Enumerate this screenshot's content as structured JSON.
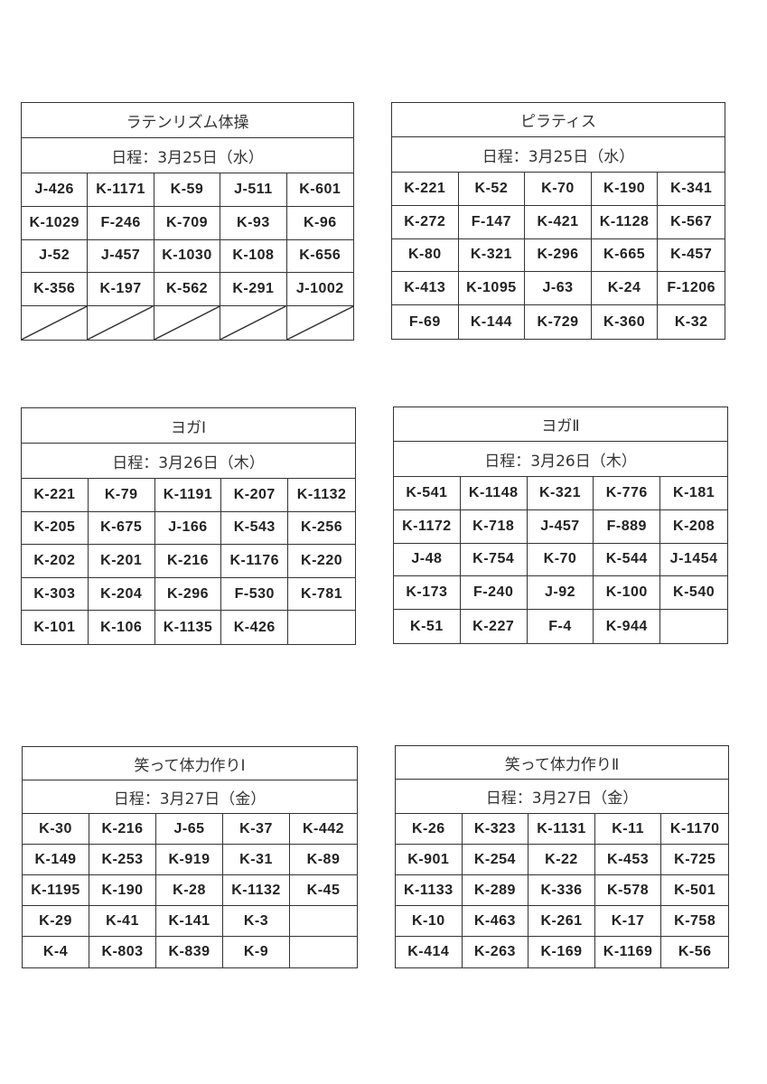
{
  "tables": [
    {
      "title": "ラテンリズム体操",
      "date": "日程：3月25日（水）",
      "rows": [
        [
          "J-426",
          "K-1171",
          "K-59",
          "J-511",
          "K-601"
        ],
        [
          "K-1029",
          "F-246",
          "K-709",
          "K-93",
          "K-96"
        ],
        [
          "J-52",
          "J-457",
          "K-1030",
          "K-108",
          "K-656"
        ],
        [
          "K-356",
          "K-197",
          "K-562",
          "K-291",
          "J-1002"
        ],
        [
          "/",
          "/",
          "/",
          "/",
          "/"
        ]
      ]
    },
    {
      "title": "ピラティス",
      "date": "日程：3月25日（水）",
      "rows": [
        [
          "K-221",
          "K-52",
          "K-70",
          "K-190",
          "K-341"
        ],
        [
          "K-272",
          "F-147",
          "K-421",
          "K-1128",
          "K-567"
        ],
        [
          "K-80",
          "K-321",
          "K-296",
          "K-665",
          "K-457"
        ],
        [
          "K-413",
          "K-1095",
          "J-63",
          "K-24",
          "F-1206"
        ],
        [
          "F-69",
          "K-144",
          "K-729",
          "K-360",
          "K-32"
        ]
      ]
    },
    {
      "title": "ヨガⅠ",
      "date": "日程：3月26日（木）",
      "rows": [
        [
          "K-221",
          "K-79",
          "K-1191",
          "K-207",
          "K-1132"
        ],
        [
          "K-205",
          "K-675",
          "J-166",
          "K-543",
          "K-256"
        ],
        [
          "K-202",
          "K-201",
          "K-216",
          "K-1176",
          "K-220"
        ],
        [
          "K-303",
          "K-204",
          "K-296",
          "F-530",
          "K-781"
        ],
        [
          "K-101",
          "K-106",
          "K-1135",
          "K-426",
          ""
        ]
      ]
    },
    {
      "title": "ヨガⅡ",
      "date": "日程：3月26日（木）",
      "rows": [
        [
          "K-541",
          "K-1148",
          "K-321",
          "K-776",
          "K-181"
        ],
        [
          "K-1172",
          "K-718",
          "J-457",
          "F-889",
          "K-208"
        ],
        [
          "J-48",
          "K-754",
          "K-70",
          "K-544",
          "J-1454"
        ],
        [
          "K-173",
          "F-240",
          "J-92",
          "K-100",
          "K-540"
        ],
        [
          "K-51",
          "K-227",
          "F-4",
          "K-944",
          ""
        ]
      ]
    },
    {
      "title": "笑って体力作りⅠ",
      "date": "日程：3月27日（金）",
      "rows": [
        [
          "K-30",
          "K-216",
          "J-65",
          "K-37",
          "K-442"
        ],
        [
          "K-149",
          "K-253",
          "K-919",
          "K-31",
          "K-89"
        ],
        [
          "K-1195",
          "K-190",
          "K-28",
          "K-1132",
          "K-45"
        ],
        [
          "K-29",
          "K-41",
          "K-141",
          "K-3",
          ""
        ],
        [
          "K-4",
          "K-803",
          "K-839",
          "K-9",
          ""
        ]
      ]
    },
    {
      "title": "笑って体力作りⅡ",
      "date": "日程：3月27日（金）",
      "rows": [
        [
          "K-26",
          "K-323",
          "K-1131",
          "K-11",
          "K-1170"
        ],
        [
          "K-901",
          "K-254",
          "K-22",
          "K-453",
          "K-725"
        ],
        [
          "K-1133",
          "K-289",
          "K-336",
          "K-578",
          "K-501"
        ],
        [
          "K-10",
          "K-463",
          "K-261",
          "K-17",
          "K-758"
        ],
        [
          "K-414",
          "K-263",
          "K-169",
          "K-1169",
          "K-56"
        ]
      ]
    }
  ]
}
